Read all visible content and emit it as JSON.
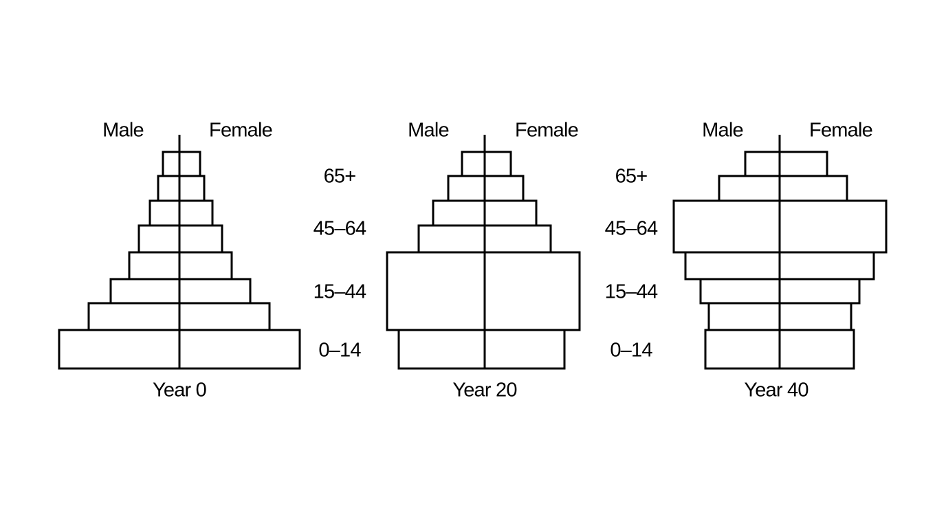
{
  "pyramids": [
    {
      "male": "Male",
      "female": "Female",
      "label": "Year 0"
    },
    {
      "male": "Male",
      "female": "Female",
      "label": "Year 20"
    },
    {
      "male": "Male",
      "female": "Female",
      "label": "Year 40"
    }
  ],
  "age_columns": [
    [
      "65+",
      "45–64",
      "15–44",
      "0–14"
    ],
    [
      "65+",
      "45–64",
      "15–44",
      "0–14"
    ]
  ]
}
